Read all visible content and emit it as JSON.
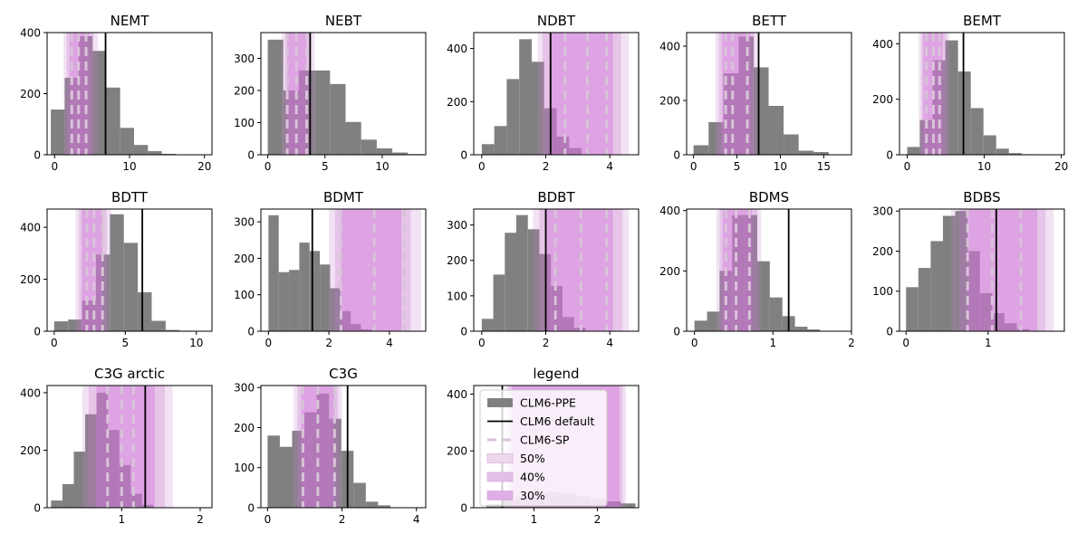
{
  "colors": {
    "hist": "#808080",
    "default_line": "#000000",
    "sp_dash": "#d9c3d9",
    "band50": "#e8d3e8",
    "band40": "#d8a8df",
    "band30": "#dc9ce0",
    "frame": "#000000"
  },
  "legend": {
    "title": "legend",
    "items": [
      {
        "kind": "patch",
        "label": "CLM6-PPE",
        "color": "#808080"
      },
      {
        "kind": "line",
        "label": "CLM6 default",
        "color": "#000000"
      },
      {
        "kind": "dash",
        "label": "CLM6-SP",
        "color": "#d9c3d9"
      },
      {
        "kind": "band",
        "label": "50%",
        "color": "#ecd9ec"
      },
      {
        "kind": "band",
        "label": "40%",
        "color": "#e2bfe6"
      },
      {
        "kind": "band",
        "label": "30%",
        "color": "#dfaee4"
      }
    ]
  },
  "chart_data": [
    {
      "type": "histogram",
      "title": "NEMT",
      "xlim": [
        -1,
        21
      ],
      "ylim": [
        0,
        400
      ],
      "xticks": [
        0,
        10,
        20
      ],
      "yticks": [
        0,
        200,
        400
      ],
      "bin_start": -0.5,
      "bin_width": 1.85,
      "counts": [
        148,
        252,
        388,
        340,
        220,
        88,
        32,
        12,
        3
      ],
      "default": 6.8,
      "sp": [
        2.3,
        3.2,
        4.2
      ],
      "bands": {
        "b50": [
          1.2,
          5.8
        ],
        "b40": [
          1.6,
          5.2
        ],
        "b30": [
          2.0,
          4.6
        ]
      }
    },
    {
      "type": "histogram",
      "title": "NEBT",
      "xlim": [
        -0.6,
        13.8
      ],
      "ylim": [
        0,
        380
      ],
      "xticks": [
        0,
        5,
        10
      ],
      "yticks": [
        0,
        100,
        200,
        300
      ],
      "bin_start": 0,
      "bin_width": 1.36,
      "counts": [
        358,
        200,
        262,
        262,
        220,
        102,
        47,
        20,
        7,
        2
      ],
      "default": 3.7,
      "sp": [
        1.7,
        2.5,
        3.4
      ],
      "bands": {
        "b50": [
          1.2,
          4.1
        ],
        "b40": [
          1.5,
          3.8
        ],
        "b30": [
          1.7,
          3.4
        ]
      }
    },
    {
      "type": "histogram",
      "title": "NDBT",
      "xlim": [
        -0.25,
        4.9
      ],
      "ylim": [
        0,
        460
      ],
      "xticks": [
        0,
        2,
        4
      ],
      "yticks": [
        0,
        200,
        400
      ],
      "bin_start": 0,
      "bin_width": 0.39,
      "counts": [
        40,
        108,
        285,
        435,
        350,
        175,
        68,
        25
      ],
      "default": 2.15,
      "sp": [
        2.6,
        3.3,
        3.9
      ],
      "bands": {
        "b50": [
          1.75,
          4.6
        ],
        "b40": [
          1.9,
          4.35
        ],
        "b30": [
          2.1,
          4.1
        ]
      }
    },
    {
      "type": "histogram",
      "title": "BETT",
      "xlim": [
        -0.8,
        18.2
      ],
      "ylim": [
        0,
        450
      ],
      "xticks": [
        0,
        5,
        10,
        15
      ],
      "yticks": [
        0,
        200,
        400
      ],
      "bin_start": 0,
      "bin_width": 1.73,
      "counts": [
        35,
        120,
        300,
        435,
        322,
        180,
        75,
        15,
        10
      ],
      "default": 7.5,
      "sp": [
        3.7,
        4.5,
        6.2
      ],
      "bands": {
        "b50": [
          2.5,
          7.4
        ],
        "b40": [
          2.9,
          7.0
        ],
        "b30": [
          3.3,
          6.6
        ]
      }
    },
    {
      "type": "histogram",
      "title": "BEMT",
      "xlim": [
        -1,
        20.4
      ],
      "ylim": [
        0,
        440
      ],
      "xticks": [
        0,
        10,
        20
      ],
      "yticks": [
        0,
        200,
        400
      ],
      "bin_start": 0,
      "bin_width": 1.65,
      "counts": [
        28,
        125,
        340,
        412,
        300,
        168,
        70,
        22,
        6,
        2
      ],
      "default": 7.3,
      "sp": [
        2.5,
        3.4,
        4.2
      ],
      "bands": {
        "b50": [
          1.5,
          5.5
        ],
        "b40": [
          1.8,
          5.1
        ],
        "b30": [
          2.1,
          4.6
        ]
      }
    },
    {
      "type": "histogram",
      "title": "BDTT",
      "xlim": [
        -0.5,
        11.1
      ],
      "ylim": [
        0,
        470
      ],
      "xticks": [
        0,
        5,
        10
      ],
      "yticks": [
        0,
        200,
        400
      ],
      "bin_start": 0,
      "bin_width": 0.98,
      "counts": [
        38,
        45,
        118,
        295,
        450,
        340,
        150,
        40,
        5,
        2
      ],
      "default": 6.2,
      "sp": [
        2.3,
        2.8,
        3.4
      ],
      "bands": {
        "b50": [
          1.5,
          4.0
        ],
        "b40": [
          1.75,
          3.7
        ],
        "b30": [
          1.95,
          3.4
        ]
      }
    },
    {
      "type": "histogram",
      "title": "BDMT",
      "xlim": [
        -0.25,
        5.2
      ],
      "ylim": [
        0,
        335
      ],
      "xticks": [
        0,
        2,
        4
      ],
      "yticks": [
        0,
        100,
        200,
        300
      ],
      "bin_start": 0,
      "bin_width": 0.34,
      "counts": [
        318,
        162,
        168,
        243,
        220,
        183,
        118,
        55,
        20,
        5
      ],
      "default": 1.45,
      "sp": [
        2.4,
        3.5,
        4.5
      ],
      "bands": {
        "b50": [
          2.0,
          5.05
        ],
        "b40": [
          2.2,
          4.7
        ],
        "b30": [
          2.4,
          4.4
        ]
      }
    },
    {
      "type": "histogram",
      "title": "BDBT",
      "xlim": [
        -0.25,
        4.9
      ],
      "ylim": [
        0,
        345
      ],
      "xticks": [
        0,
        2,
        4
      ],
      "yticks": [
        0,
        100,
        200,
        300
      ],
      "bin_start": 0,
      "bin_width": 0.36,
      "counts": [
        35,
        160,
        278,
        328,
        288,
        218,
        128,
        40,
        10
      ],
      "default": 2.0,
      "sp": [
        2.3,
        3.1,
        3.9
      ],
      "bands": {
        "b50": [
          1.6,
          4.6
        ],
        "b40": [
          1.8,
          4.4
        ],
        "b30": [
          2.0,
          4.1
        ]
      }
    },
    {
      "type": "histogram",
      "title": "BDMS",
      "xlim": [
        -0.1,
        2.0
      ],
      "ylim": [
        0,
        405
      ],
      "xticks": [
        0,
        1,
        2
      ],
      "yticks": [
        0,
        200,
        400
      ],
      "bin_start": 0,
      "bin_width": 0.16,
      "counts": [
        35,
        65,
        200,
        385,
        385,
        232,
        112,
        50,
        15,
        6
      ],
      "default": 1.2,
      "sp": [
        0.4,
        0.53,
        0.7
      ],
      "bands": {
        "b50": [
          0.28,
          0.85
        ],
        "b40": [
          0.32,
          0.8
        ],
        "b30": [
          0.36,
          0.73
        ]
      }
    },
    {
      "type": "histogram",
      "title": "BDBS",
      "xlim": [
        -0.08,
        1.93
      ],
      "ylim": [
        0,
        305
      ],
      "xticks": [
        0,
        1
      ],
      "yticks": [
        0,
        100,
        200,
        300
      ],
      "bin_start": 0,
      "bin_width": 0.15,
      "counts": [
        110,
        158,
        225,
        288,
        300,
        200,
        95,
        45,
        20,
        5
      ],
      "default": 1.1,
      "sp": [
        0.75,
        1.05,
        1.4
      ],
      "bands": {
        "b50": [
          0.55,
          1.8
        ],
        "b40": [
          0.65,
          1.7
        ],
        "b30": [
          0.75,
          1.6
        ]
      }
    },
    {
      "type": "histogram",
      "title": "C3G arctic",
      "xlim": [
        0.05,
        2.15
      ],
      "ylim": [
        0,
        425
      ],
      "xticks": [
        1,
        2
      ],
      "yticks": [
        0,
        200,
        400
      ],
      "bin_start": 0.1,
      "bin_width": 0.145,
      "counts": [
        25,
        82,
        195,
        325,
        400,
        270,
        148,
        48,
        10
      ],
      "default": 1.3,
      "sp": [
        0.82,
        1.0,
        1.15
      ],
      "bands": {
        "b50": [
          0.5,
          1.65
        ],
        "b40": [
          0.58,
          1.55
        ],
        "b30": [
          0.68,
          1.42
        ]
      }
    },
    {
      "type": "histogram",
      "title": "C3G",
      "xlim": [
        -0.18,
        4.25
      ],
      "ylim": [
        0,
        305
      ],
      "xticks": [
        0,
        2,
        4
      ],
      "yticks": [
        0,
        100,
        200,
        300
      ],
      "bin_start": 0,
      "bin_width": 0.33,
      "counts": [
        180,
        152,
        192,
        238,
        285,
        222,
        142,
        62,
        15,
        6
      ],
      "default": 2.15,
      "sp": [
        0.95,
        1.35,
        1.8
      ],
      "bands": {
        "b50": [
          0.7,
          2.0
        ],
        "b40": [
          0.8,
          1.9
        ],
        "b30": [
          0.9,
          1.8
        ]
      }
    },
    {
      "type": "histogram",
      "title": "legend",
      "xlim": [
        0.05,
        2.65
      ],
      "ylim": [
        0,
        430
      ],
      "xticks": [
        1,
        2
      ],
      "yticks": [
        0,
        200,
        400
      ],
      "bin_start": 0.25,
      "bin_width": 0.235,
      "counts": [
        12,
        28,
        40,
        50,
        55,
        50,
        40,
        30,
        22,
        15
      ],
      "default": 0.5,
      "sp": [],
      "bands": {
        "b50": [
          0.55,
          2.45
        ],
        "b40": [
          0.6,
          2.4
        ],
        "b30": [
          0.65,
          2.35
        ]
      }
    }
  ]
}
